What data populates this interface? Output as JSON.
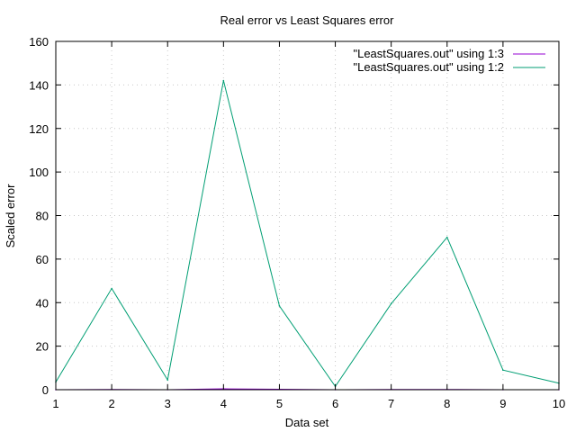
{
  "chart_data": {
    "type": "line",
    "title": "Real error vs Least Squares error",
    "xlabel": "Data set",
    "ylabel": "Scaled error",
    "xlim": [
      1,
      10
    ],
    "ylim": [
      0,
      160
    ],
    "xticks": [
      1,
      2,
      3,
      4,
      5,
      6,
      7,
      8,
      9,
      10
    ],
    "yticks": [
      0,
      20,
      40,
      60,
      80,
      100,
      120,
      140,
      160
    ],
    "grid": true,
    "legend_position": "top-right",
    "x": [
      1,
      2,
      3,
      4,
      5,
      6,
      7,
      8,
      9,
      10
    ],
    "series": [
      {
        "name": "\"LeastSquares.out\" using 1:3",
        "color": "#9400d3",
        "values": [
          0.0,
          0.1,
          0.0,
          0.4,
          0.2,
          0.0,
          0.1,
          0.1,
          0.0,
          0.0
        ]
      },
      {
        "name": "\"LeastSquares.out\" using 1:2",
        "color": "#009e73",
        "values": [
          3.5,
          46.5,
          4.5,
          142.0,
          38.5,
          1.5,
          39.5,
          70.0,
          9.0,
          3.0
        ]
      }
    ]
  }
}
